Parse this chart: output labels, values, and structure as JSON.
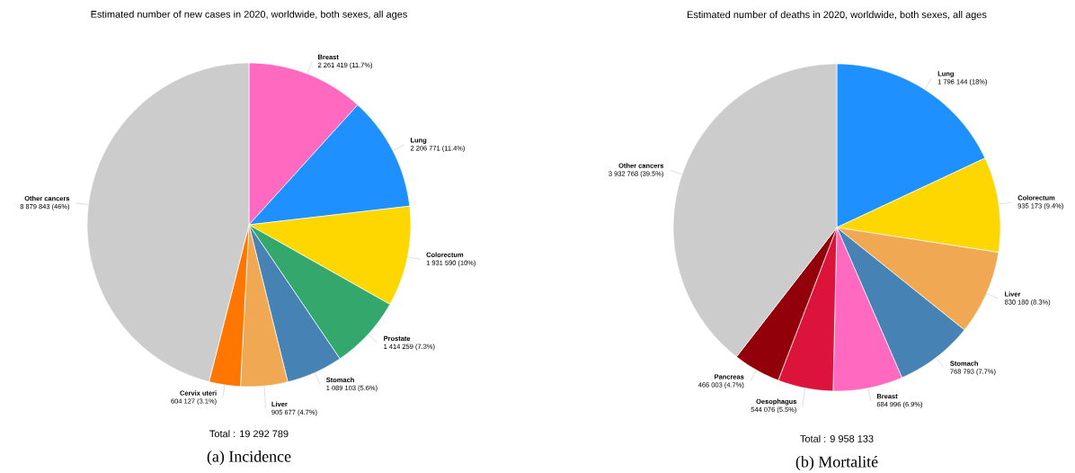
{
  "chart_data": [
    {
      "type": "pie",
      "title": "Estimated number of new cases in 2020, worldwide, both sexes, all ages",
      "categories": [
        "Breast",
        "Lung",
        "Colorectum",
        "Prostate",
        "Stomach",
        "Liver",
        "Cervix uteri",
        "Other cancers"
      ],
      "values": [
        2261419,
        2206771,
        1931590,
        1414259,
        1089103,
        905677,
        604127,
        8879843
      ],
      "value_labels": [
        "2 261 419 (11.7%)",
        "2 206 771 (11.4%)",
        "1 931 590 (10%)",
        "1 414 259 (7.3%)",
        "1 089 103 (5.6%)",
        "905 677 (4.7%)",
        "604 127 (3.1%)",
        "8 879 843 (46%)"
      ],
      "colors": [
        "#ff69c0",
        "#1e90ff",
        "#ffd700",
        "#33a76c",
        "#4682b4",
        "#f1a852",
        "#ff7700",
        "#cccccc"
      ],
      "annotations": [
        "Total : 19 292 789",
        "(a) Incidence"
      ]
    },
    {
      "type": "pie",
      "title": "Estimated number of deaths in 2020, worldwide, both sexes, all ages",
      "categories": [
        "Lung",
        "Colorectum",
        "Liver",
        "Stomach",
        "Breast",
        "Oesophagus",
        "Pancreas",
        "Other cancers"
      ],
      "values": [
        1796144,
        935173,
        830180,
        768793,
        684996,
        544076,
        466003,
        3932768
      ],
      "value_labels": [
        "1 796 144 (18%)",
        "935 173 (9.4%)",
        "830 180 (8.3%)",
        "768 793 (7.7%)",
        "684 996 (6.9%)",
        "544 076 (5.5%)",
        "466 003 (4.7%)",
        "3 932 768 (39.5%)"
      ],
      "colors": [
        "#1e90ff",
        "#ffd700",
        "#f1a852",
        "#4682b4",
        "#ff69c0",
        "#dc143c",
        "#92000a",
        "#cccccc"
      ],
      "annotations": [
        "Total : 9 958 133",
        "(b) Mortalité"
      ]
    }
  ]
}
